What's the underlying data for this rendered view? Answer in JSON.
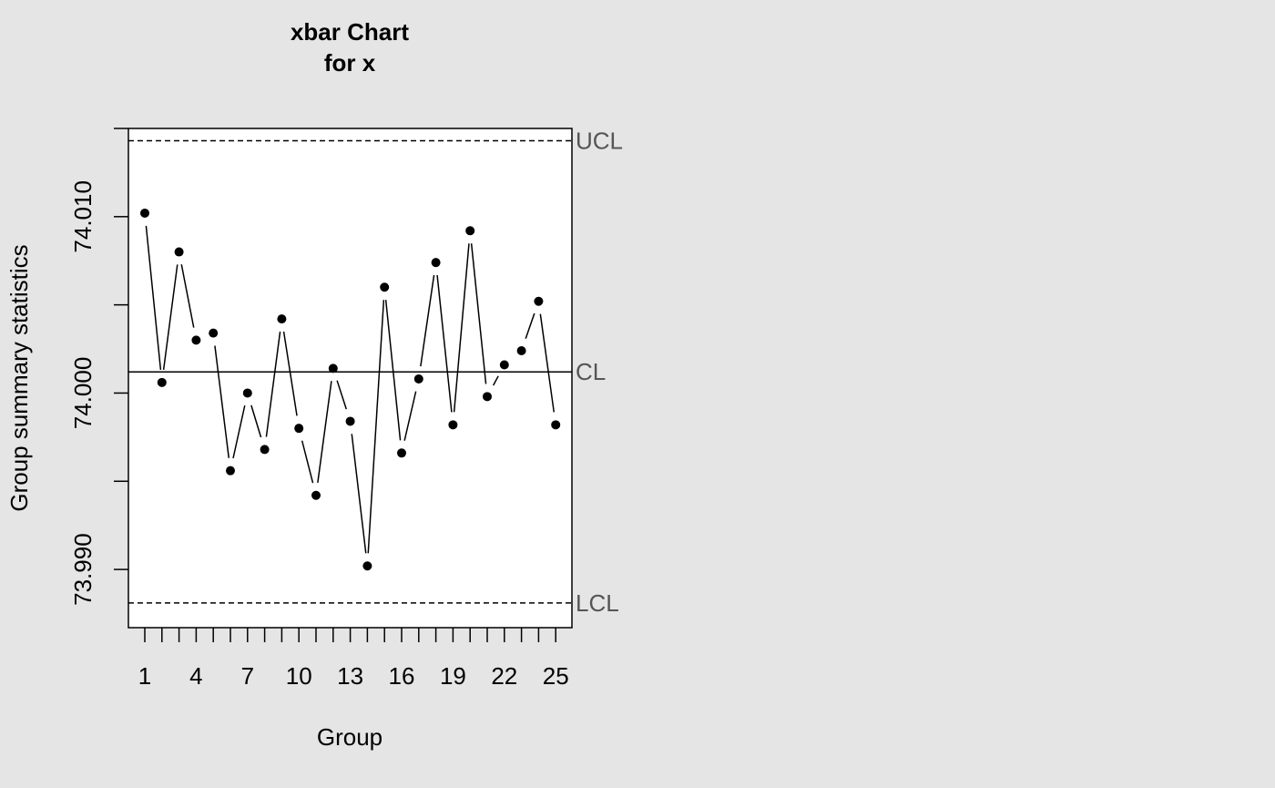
{
  "chart_data": {
    "type": "line",
    "title": "xbar Chart",
    "subtitle": "for x",
    "xlabel": "Group",
    "ylabel": "Group summary statistics",
    "x": [
      1,
      2,
      3,
      4,
      5,
      6,
      7,
      8,
      9,
      10,
      11,
      12,
      13,
      14,
      15,
      16,
      17,
      18,
      19,
      20,
      21,
      22,
      23,
      24,
      25
    ],
    "values": [
      74.0102,
      74.0006,
      74.008,
      74.003,
      74.0034,
      73.9956,
      74.0,
      73.9968,
      74.0042,
      73.998,
      73.9942,
      74.0014,
      73.9984,
      73.9902,
      74.006,
      73.9966,
      74.0008,
      74.0074,
      73.9982,
      74.0092,
      73.9998,
      74.0016,
      74.0024,
      74.0052,
      73.9982
    ],
    "x_tick_labels": [
      "1",
      "4",
      "7",
      "10",
      "13",
      "16",
      "19",
      "22",
      "25"
    ],
    "y_ticks": [
      73.99,
      73.995,
      74.0,
      74.005,
      74.01,
      74.015
    ],
    "y_tick_labels": [
      "73.990",
      "74.000",
      "74.010"
    ],
    "ylim": [
      73.9867,
      74.015
    ],
    "limits": [
      {
        "label": "UCL",
        "value": 74.0143,
        "style": "dashed"
      },
      {
        "label": "CL",
        "value": 74.0012,
        "style": "solid"
      },
      {
        "label": "LCL",
        "value": 73.9881,
        "style": "dashed"
      }
    ],
    "grid": false,
    "colors": {
      "background": "#e5e5e5",
      "plot": "#ffffff",
      "line": "#000000",
      "limit_label": "#555555"
    }
  }
}
